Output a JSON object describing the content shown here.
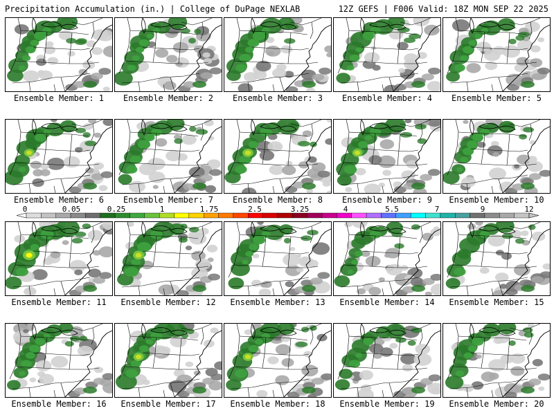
{
  "header": {
    "left": "Precipitation Accumulation (in.) | College of DuPage NEXLAB",
    "right": "12Z GEFS | F006 Valid: 18Z MON SEP 22 2025"
  },
  "caption_prefix": "Ensemble Member:",
  "members": [
    {
      "number": "1",
      "intensity": 0.55
    },
    {
      "number": "2",
      "intensity": 0.5
    },
    {
      "number": "3",
      "intensity": 0.55
    },
    {
      "number": "4",
      "intensity": 0.55
    },
    {
      "number": "5",
      "intensity": 0.5
    },
    {
      "number": "6",
      "intensity": 0.65
    },
    {
      "number": "7",
      "intensity": 0.55
    },
    {
      "number": "8",
      "intensity": 0.75
    },
    {
      "number": "9",
      "intensity": 0.65
    },
    {
      "number": "10",
      "intensity": 0.5
    },
    {
      "number": "11",
      "intensity": 1.0
    },
    {
      "number": "12",
      "intensity": 0.8
    },
    {
      "number": "13",
      "intensity": 0.55
    },
    {
      "number": "14",
      "intensity": 0.45
    },
    {
      "number": "15",
      "intensity": 0.55
    },
    {
      "number": "16",
      "intensity": 0.45
    },
    {
      "number": "17",
      "intensity": 0.7
    },
    {
      "number": "18",
      "intensity": 0.7
    },
    {
      "number": "19",
      "intensity": 0.45
    },
    {
      "number": "20",
      "intensity": 0.5
    }
  ],
  "colorbar": {
    "labels": [
      "0",
      "0.05",
      "0.25",
      "1",
      "1.75",
      "2.5",
      "3.25",
      "4",
      "5.5",
      "7",
      "9",
      "12"
    ],
    "colors": [
      "#dcdcdc",
      "#c3c3c3",
      "#a8a8a8",
      "#8a8a8a",
      "#6e6e6e",
      "#1e6e1e",
      "#2e8b2e",
      "#3ea83e",
      "#6cc23c",
      "#b0dc28",
      "#ffff00",
      "#ffd200",
      "#ffa000",
      "#ff7800",
      "#ff4600",
      "#ff0000",
      "#d80000",
      "#b00000",
      "#8b0020",
      "#a0005a",
      "#c8008c",
      "#f000c8",
      "#ff50ff",
      "#b070ff",
      "#6070ff",
      "#40a0ff",
      "#00ffff",
      "#40e0d0",
      "#20b2aa",
      "#48a0a0",
      "#707070",
      "#8c8c8c",
      "#a8a8a8",
      "#c4c4c4"
    ]
  },
  "legend_colors": {
    "light_gray": "#d2d2d2",
    "mid_gray": "#a8a8a8",
    "dark_gray": "#787878",
    "dark_green": "#2a7a2a",
    "green": "#3ea03e",
    "light_green": "#7cc43c",
    "yellow_green": "#c8e028",
    "yellow": "#ffff00"
  }
}
